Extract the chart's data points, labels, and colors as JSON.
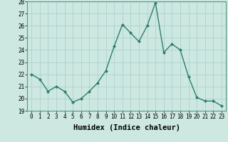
{
  "x": [
    0,
    1,
    2,
    3,
    4,
    5,
    6,
    7,
    8,
    9,
    10,
    11,
    12,
    13,
    14,
    15,
    16,
    17,
    18,
    19,
    20,
    21,
    22,
    23
  ],
  "y": [
    22.0,
    21.6,
    20.6,
    21.0,
    20.6,
    19.7,
    20.0,
    20.6,
    21.3,
    22.3,
    24.3,
    26.1,
    25.4,
    24.7,
    26.0,
    27.9,
    23.8,
    24.5,
    24.0,
    21.8,
    20.1,
    19.8,
    19.8,
    19.4
  ],
  "line_color": "#2e7d6e",
  "marker": "D",
  "marker_size": 2.0,
  "bg_color": "#cce8e0",
  "grid_color": "#aacccc",
  "xlabel": "Humidex (Indice chaleur)",
  "ylim": [
    19,
    28
  ],
  "xlim_min": -0.5,
  "xlim_max": 23.5,
  "yticks": [
    19,
    20,
    21,
    22,
    23,
    24,
    25,
    26,
    27,
    28
  ],
  "xticks": [
    0,
    1,
    2,
    3,
    4,
    5,
    6,
    7,
    8,
    9,
    10,
    11,
    12,
    13,
    14,
    15,
    16,
    17,
    18,
    19,
    20,
    21,
    22,
    23
  ],
  "tick_fontsize": 5.5,
  "xlabel_fontsize": 7.5,
  "line_width": 1.0
}
